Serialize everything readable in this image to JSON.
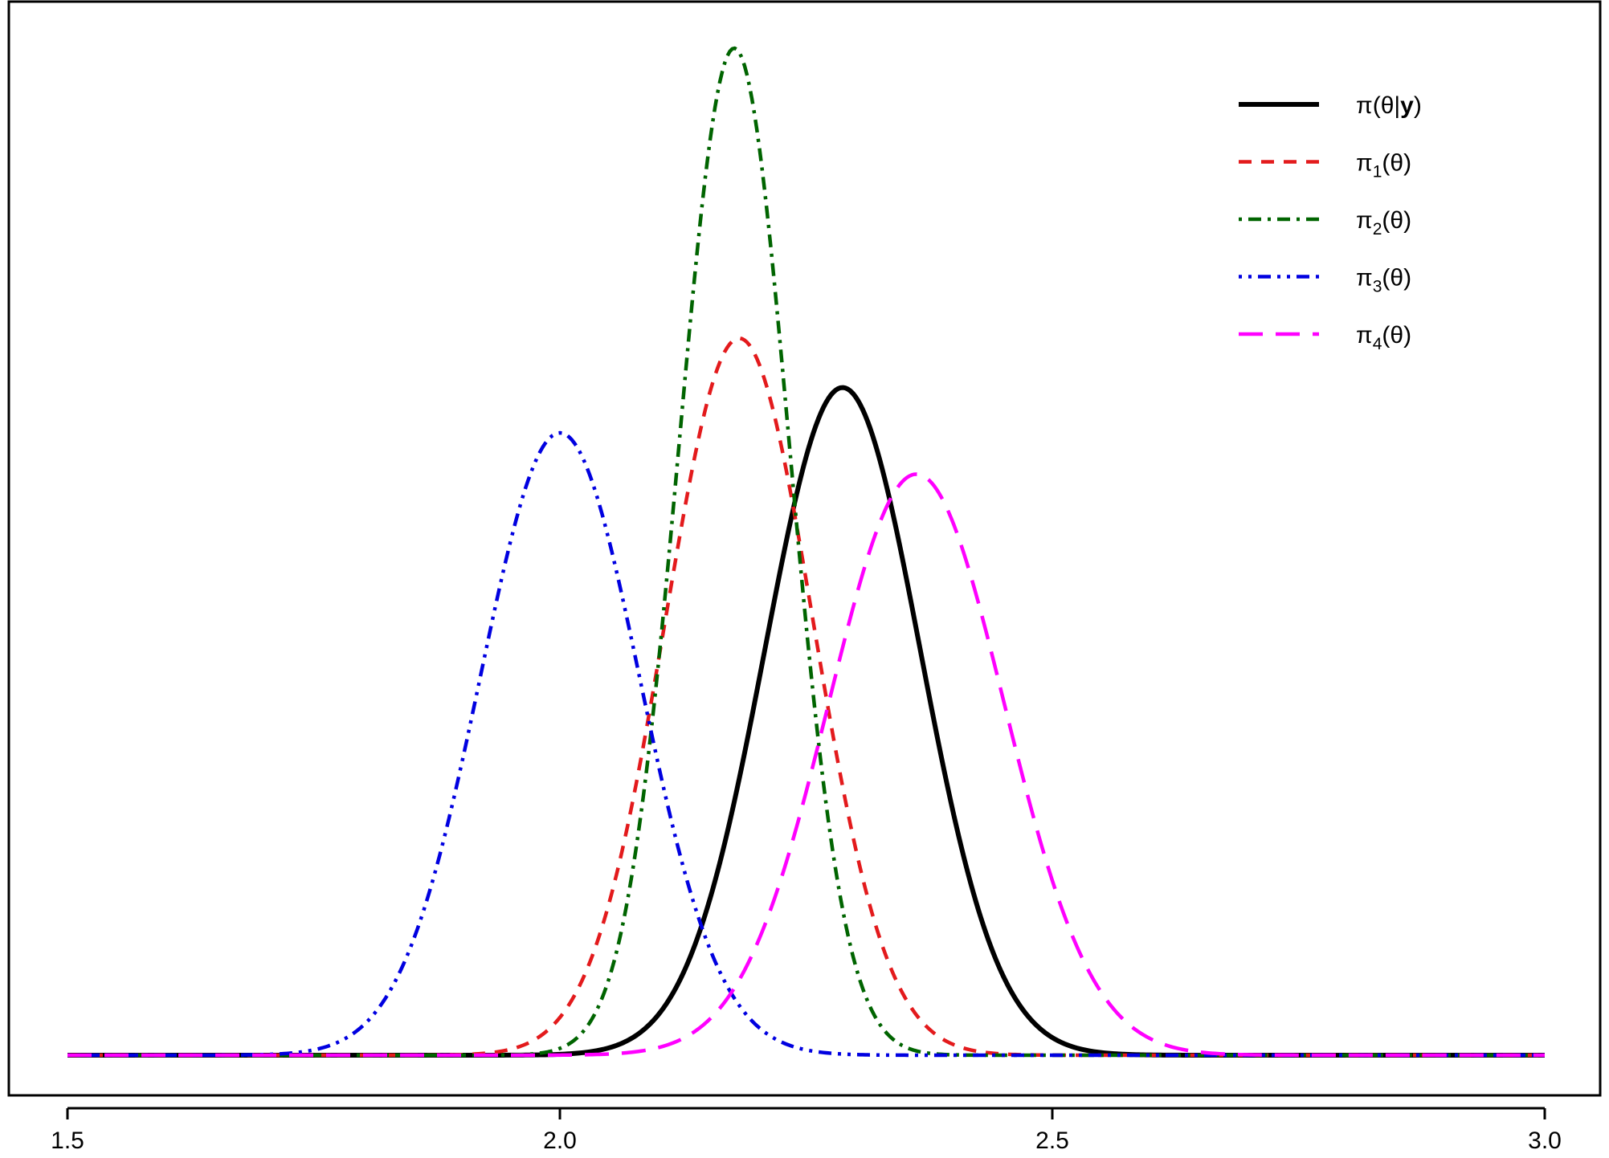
{
  "chart_data": {
    "type": "line",
    "title": "",
    "xlabel": "",
    "ylabel": "",
    "xlim": [
      1.5,
      3.0
    ],
    "ylim": [
      0,
      1
    ],
    "x_ticks": [
      1.5,
      2.0,
      2.5,
      3.0
    ],
    "x_tick_labels": [
      "1.5",
      "2.0",
      "2.5",
      "3.0"
    ],
    "y_axis_shown": false,
    "grid": false,
    "legend_position": "top-right",
    "note": "curves are normal densities; y values are relative heights (tallest peak = 1.0), no y tick labels are printed",
    "series": [
      {
        "name": "π(θ|y)",
        "legend_main": "π(θ|",
        "legend_bold": "y",
        "legend_tail": ")",
        "mean": 2.287,
        "sd": 0.079,
        "peak": 0.663,
        "color": "#000000",
        "line_style": "solid"
      },
      {
        "name": "π1(θ)",
        "legend_main": "π",
        "legend_sub": "1",
        "legend_tail": "(θ)",
        "mean": 2.182,
        "sd": 0.075,
        "peak": 0.712,
        "color": "#e31a1c",
        "line_style": "dashed"
      },
      {
        "name": "π2(θ)",
        "legend_main": "π",
        "legend_sub": "2",
        "legend_tail": "(θ)",
        "mean": 2.177,
        "sd": 0.056,
        "peak": 1.0,
        "color": "#006400",
        "line_style": "dot-dash"
      },
      {
        "name": "π3(θ)",
        "legend_main": "π",
        "legend_sub": "3",
        "legend_tail": "(θ)",
        "mean": 2.0,
        "sd": 0.081,
        "peak": 0.618,
        "color": "#0000e0",
        "line_style": "dot-dash-long"
      },
      {
        "name": "π4(θ)",
        "legend_main": "π",
        "legend_sub": "4",
        "legend_tail": "(θ)",
        "mean": 2.362,
        "sd": 0.089,
        "peak": 0.577,
        "color": "#ff00ff",
        "line_style": "long-dash"
      }
    ]
  }
}
